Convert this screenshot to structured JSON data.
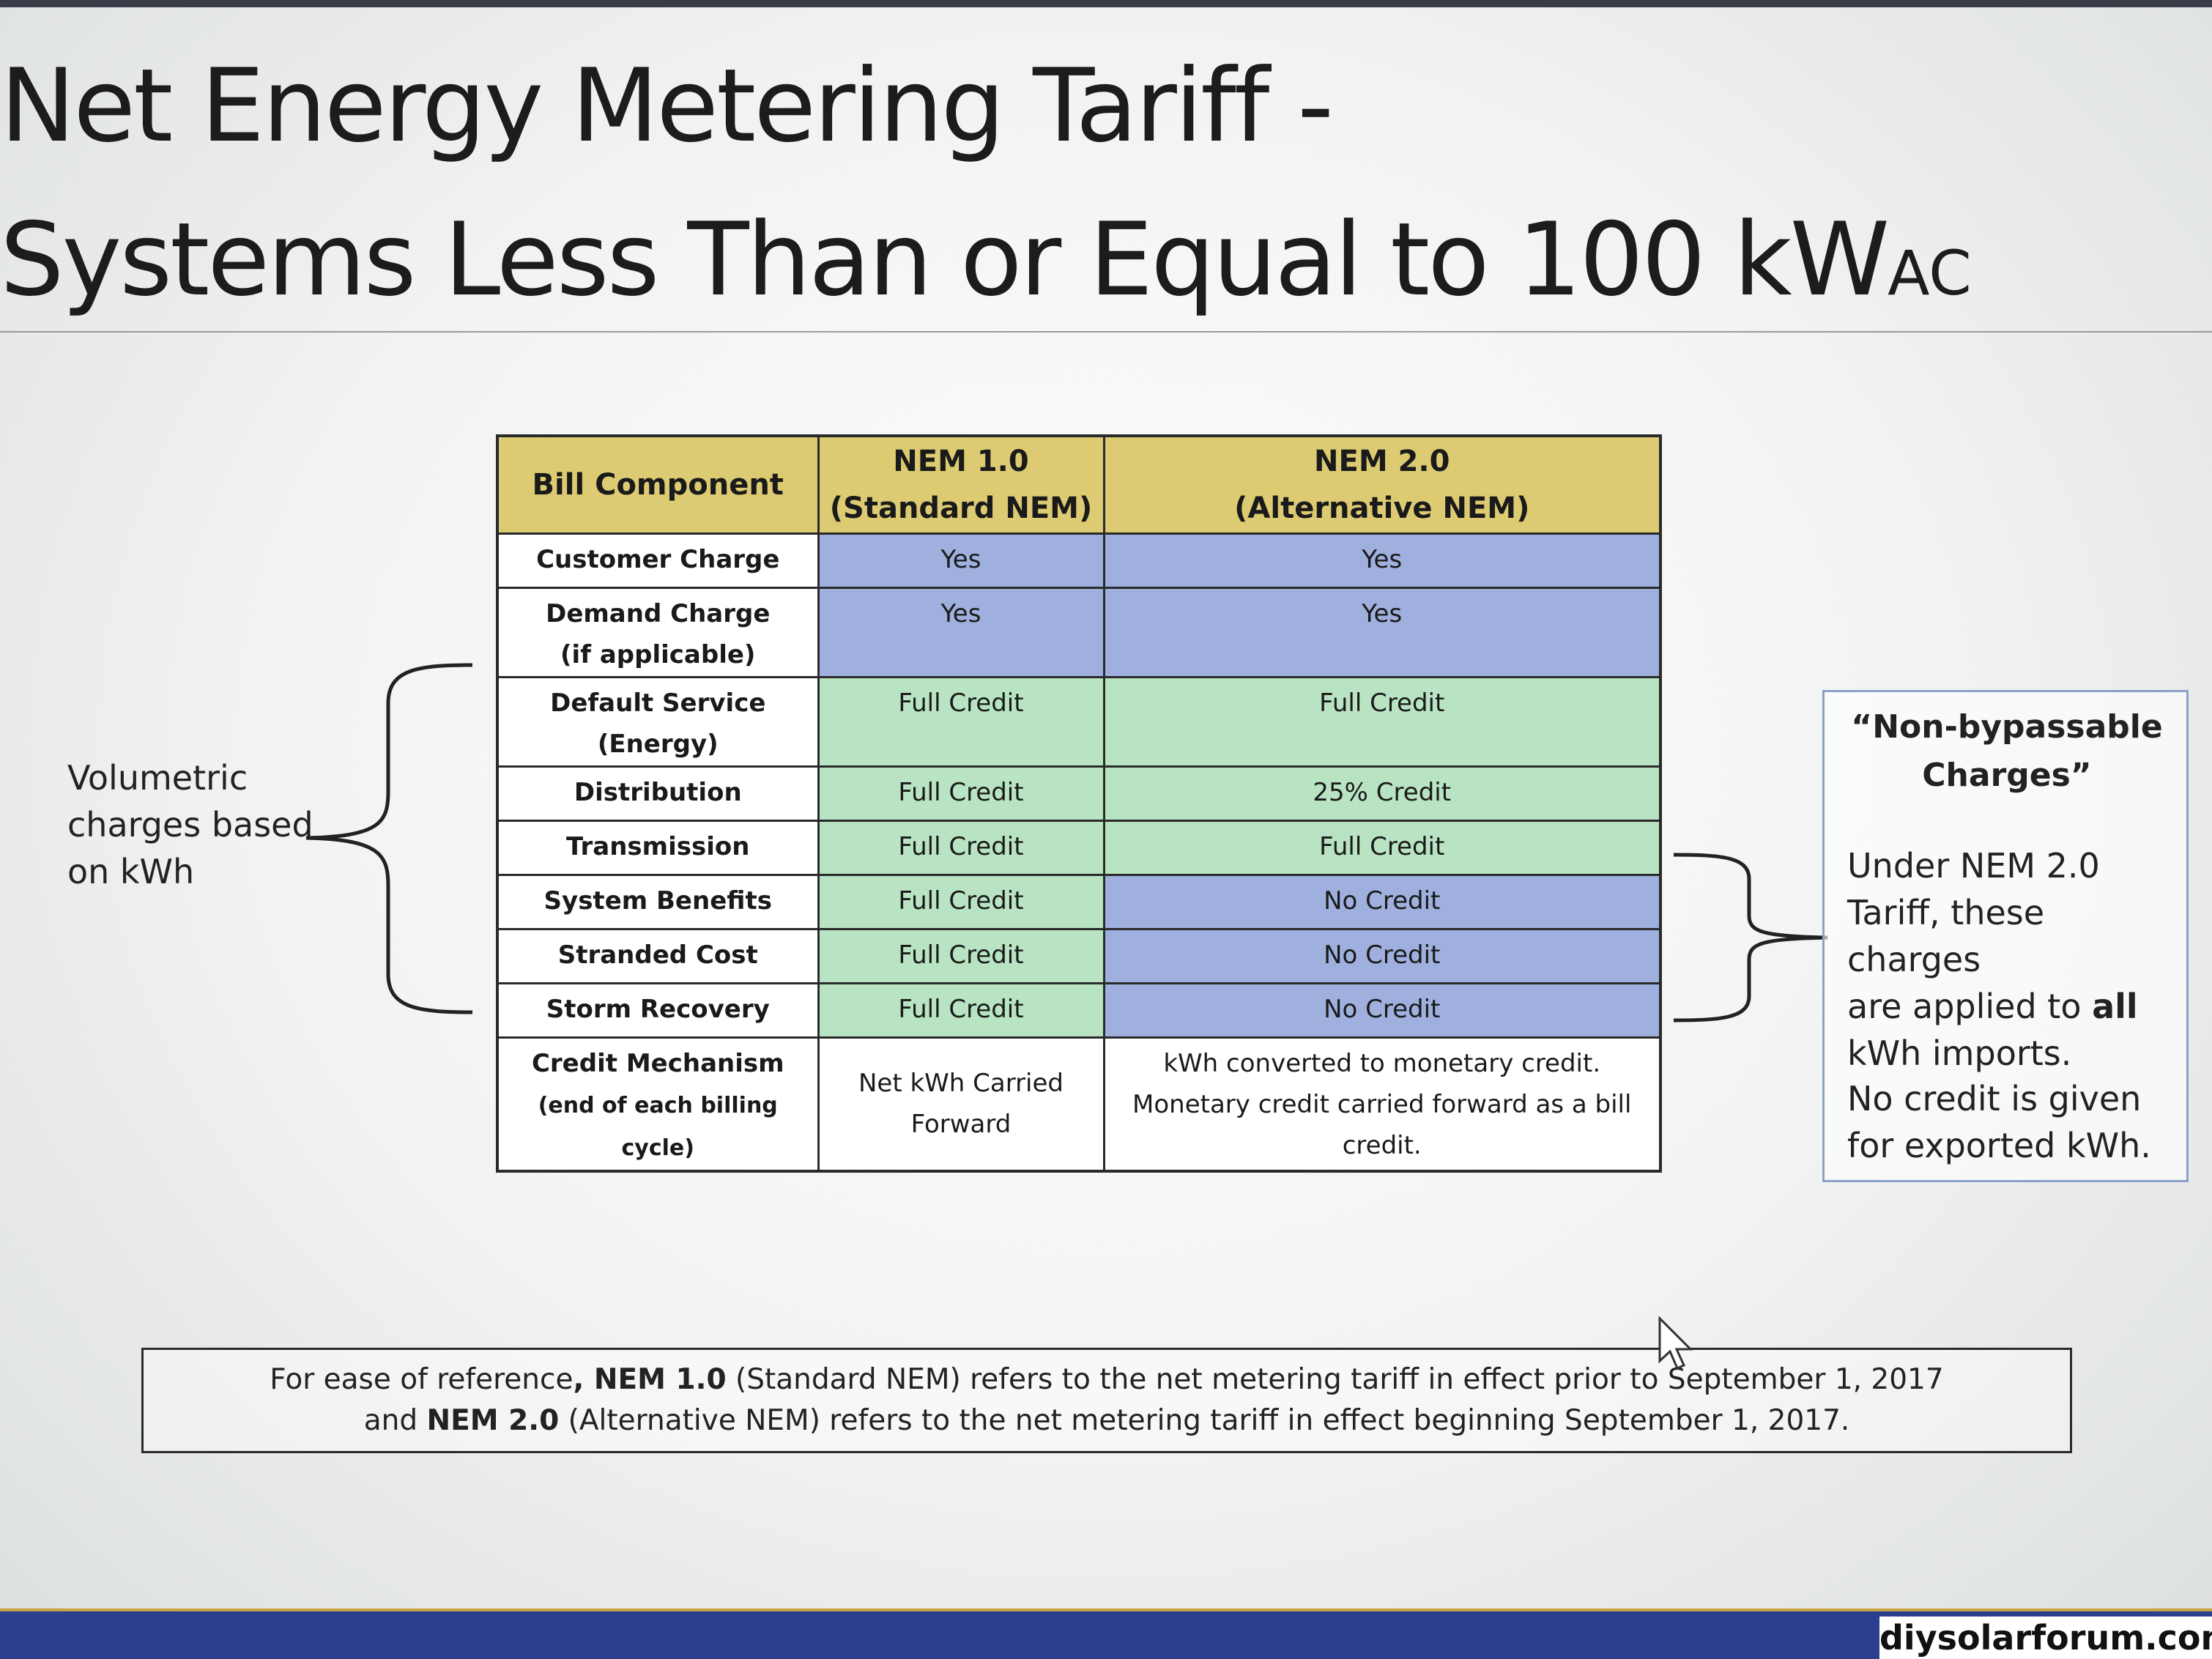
{
  "slide": {
    "title_line1": "Net Energy Metering Tariff -",
    "title_line2": "Systems Less Than or Equal to 100 kW",
    "title_subscript": "AC"
  },
  "table": {
    "headers": {
      "component": "Bill Component",
      "nem1_line1": "NEM 1.0",
      "nem1_line2": "(Standard NEM)",
      "nem2_line1": "NEM 2.0",
      "nem2_line2": "(Alternative NEM)"
    },
    "rows": [
      {
        "component": "Customer Charge",
        "component_sub": "",
        "nem1": "Yes",
        "nem2": "Yes"
      },
      {
        "component": "Demand Charge",
        "component_sub": "(if applicable)",
        "nem1": "Yes",
        "nem2": "Yes"
      },
      {
        "component": "Default Service",
        "component_sub": "(Energy)",
        "nem1": "Full Credit",
        "nem2": "Full Credit"
      },
      {
        "component": "Distribution",
        "component_sub": "",
        "nem1": "Full Credit",
        "nem2": "25% Credit"
      },
      {
        "component": "Transmission",
        "component_sub": "",
        "nem1": "Full Credit",
        "nem2": "Full Credit"
      },
      {
        "component": "System Benefits",
        "component_sub": "",
        "nem1": "Full Credit",
        "nem2": "No Credit"
      },
      {
        "component": "Stranded Cost",
        "component_sub": "",
        "nem1": "Full Credit",
        "nem2": "No Credit"
      },
      {
        "component": "Storm Recovery",
        "component_sub": "",
        "nem1": "Full Credit",
        "nem2": "No Credit"
      }
    ],
    "credit_row": {
      "component": "Credit Mechanism",
      "component_sub": "(end of each billing cycle)",
      "nem1_line1": "Net kWh Carried",
      "nem1_line2": "Forward",
      "nem2_line1": "kWh converted to monetary credit.",
      "nem2_line2": "Monetary credit carried forward as a bill",
      "nem2_line3": "credit."
    }
  },
  "left_annotation": {
    "line1": "Volumetric",
    "line2": "charges based",
    "line3": "on kWh"
  },
  "right_annotation": {
    "heading_line1": "“Non-bypassable",
    "heading_line2": "Charges”",
    "p1_line1": "Under NEM 2.0",
    "p1_line2": "Tariff, these charges",
    "p1_line3_pre": "are applied to ",
    "p1_line3_bold": "all",
    "p1_line4": "kWh imports.",
    "p2_line1": "No credit is given",
    "p2_line2": "for exported kWh."
  },
  "footnote": {
    "l1_a": "For ease of reference",
    "l1_b": ", NEM 1.0",
    "l1_c": " (Standard NEM)  refers to the net metering tariff in effect prior to September 1, 2017",
    "l2_a": "and ",
    "l2_b": "NEM 2.0",
    "l2_c": " (Alternative NEM) refers to the net metering tariff in effect beginning September 1, 2017."
  },
  "watermark": "diysolarforum.com",
  "colors": {
    "header": "#dccb72",
    "blue": "#9fb0de",
    "green": "#b9e4c3",
    "bottom_bar": "#2c3f8e"
  }
}
